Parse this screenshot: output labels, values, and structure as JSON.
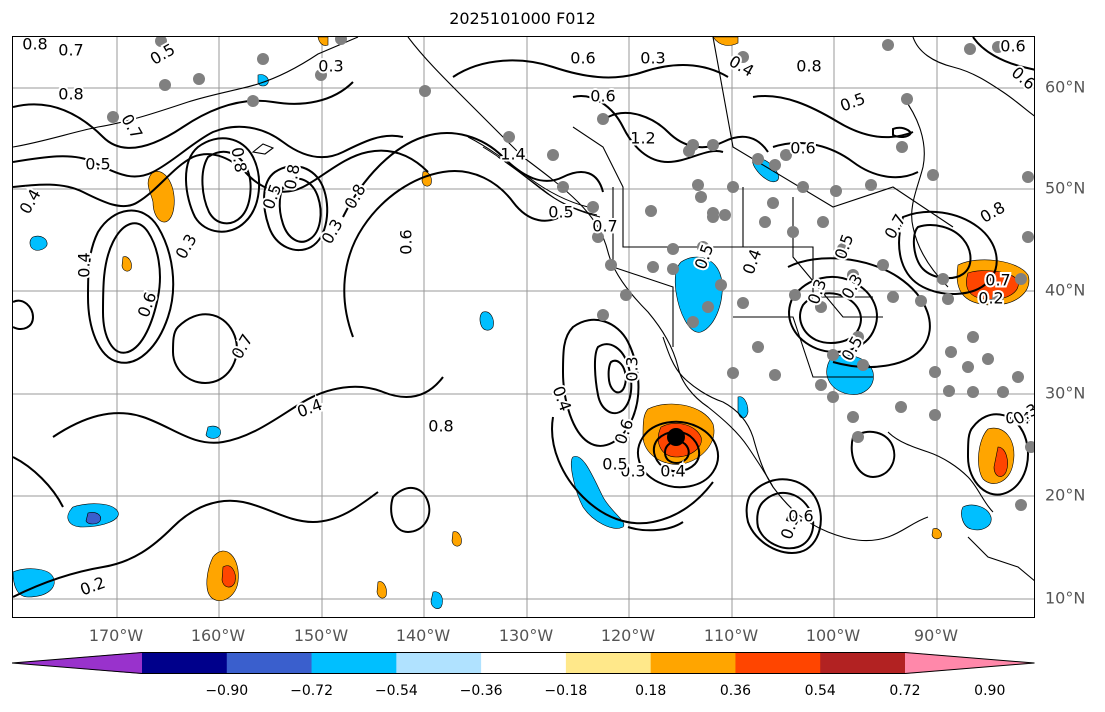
{
  "title": "2025101000 F012",
  "map": {
    "lon_labels": [
      "170°W",
      "160°W",
      "150°W",
      "140°W",
      "130°W",
      "120°W",
      "110°W",
      "100°W",
      "90°W"
    ],
    "lat_labels": [
      "60°N",
      "50°N",
      "40°N",
      "30°N",
      "20°N",
      "10°N"
    ],
    "contour_labels": [
      "0.8",
      "0.7",
      "0.5",
      "0.3",
      "0.6",
      "0.3",
      "0.4",
      "0.8",
      "0.5",
      "0.6",
      "0.7",
      "0.8",
      "0.8",
      "0.8",
      "0.5",
      "0.4",
      "0.5",
      "0.3",
      "0.5",
      "0.7",
      "0.3",
      "0.4",
      "0.6",
      "0.7",
      "0.8",
      "0.6",
      "1.2",
      "1.4",
      "0.6",
      "0.4",
      "0.5",
      "0.3",
      "0.7",
      "0.3",
      "0.4",
      "0.8",
      "0.4",
      "0.6",
      "0.3",
      "0.3",
      "0.4",
      "0.5",
      "0.6",
      "0.5",
      "0.4",
      "0.5",
      "0.6",
      "0.6",
      "0.2",
      "0.8",
      "0.7",
      "0.5",
      "0.2",
      "0.3"
    ],
    "colors": {
      "coast": "#000000",
      "contour": "#000000",
      "grid": "#999999",
      "station": "#808080",
      "storm": "#000000"
    }
  },
  "colorbar": {
    "ticks": [
      "−0.90",
      "−0.72",
      "−0.54",
      "−0.36",
      "−0.18",
      "0.18",
      "0.36",
      "0.54",
      "0.72",
      "0.90"
    ],
    "bins": [
      {
        "color": "#9932cc"
      },
      {
        "color": "#00008b"
      },
      {
        "color": "#3a5fcd"
      },
      {
        "color": "#00bfff"
      },
      {
        "color": "#b0e2ff"
      },
      {
        "color": "#ffffff"
      },
      {
        "color": "#ffe88a"
      },
      {
        "color": "#ffa500"
      },
      {
        "color": "#ff4500"
      },
      {
        "color": "#b22222"
      },
      {
        "color": "#ff88aa"
      }
    ]
  }
}
